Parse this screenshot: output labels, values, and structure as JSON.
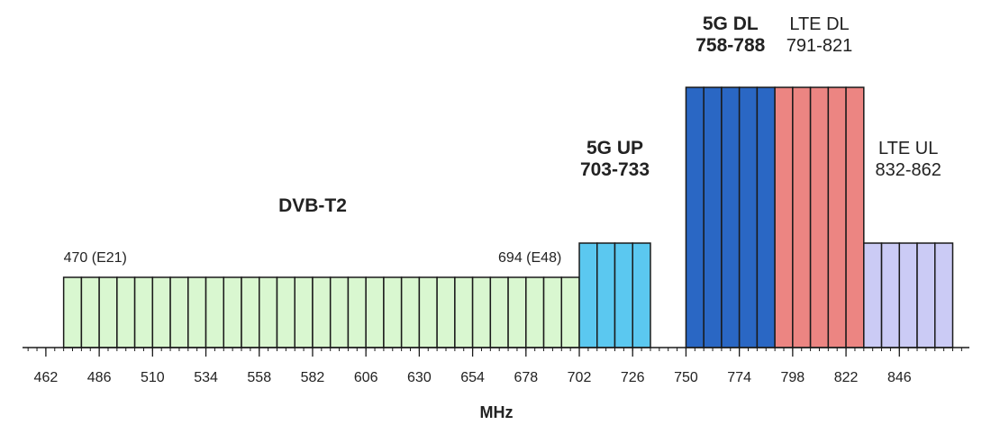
{
  "axis": {
    "unit": "MHz",
    "min": 451.5,
    "max": 877.5,
    "ticks": [
      "462",
      "486",
      "510",
      "534",
      "558",
      "582",
      "606",
      "630",
      "654",
      "678",
      "702",
      "726",
      "750",
      "774",
      "798",
      "822",
      "846"
    ],
    "minor_tick_step": 4
  },
  "bands": [
    {
      "id": "dvb-t2",
      "label_lines": [
        "DVB-T2"
      ],
      "bold": true,
      "start": 470,
      "end": 702,
      "channel_width": 8,
      "level": 1,
      "fill": "#d9f7d0",
      "label_mhz": 582
    },
    {
      "id": "5g-up",
      "label_lines": [
        "5G UP",
        "703-733"
      ],
      "bold": true,
      "start": 702,
      "end": 734,
      "channel_width": 8,
      "level": 2,
      "fill": "#5bc8f0",
      "label_mhz": 718
    },
    {
      "id": "5g-dl",
      "label_lines": [
        "5G DL",
        "758-788"
      ],
      "bold": true,
      "start": 750,
      "end": 790,
      "channel_width": 8,
      "level": 3,
      "fill": "#2a67c4",
      "label_mhz": 770
    },
    {
      "id": "lte-dl",
      "label_lines": [
        "LTE DL",
        "791-821"
      ],
      "bold": false,
      "start": 790,
      "end": 830,
      "channel_width": 8,
      "level": 3,
      "fill": "#ec8582",
      "label_mhz": 810
    },
    {
      "id": "lte-ul",
      "label_lines": [
        "LTE UL",
        "832-862"
      ],
      "bold": false,
      "start": 830,
      "end": 870,
      "channel_width": 8,
      "level": 2,
      "fill": "#cbcbf5",
      "label_mhz": 850
    }
  ],
  "channel_notes": [
    {
      "text": "470 (E21)",
      "mhz": 470,
      "align": "start"
    },
    {
      "text": "694 (E48)",
      "mhz": 694,
      "align": "end"
    }
  ]
}
